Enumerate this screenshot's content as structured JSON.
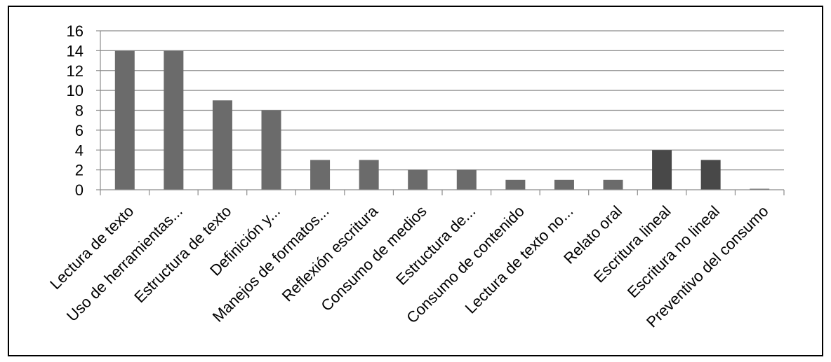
{
  "chart_data": {
    "type": "bar",
    "categories": [
      "Lectura de texto",
      "Uso de herramientas...",
      "Estructura de texto",
      "Definición y...",
      "Manejos de formatos...",
      "Reflexión escritura",
      "Consumo de medios",
      "Estructura de...",
      "Consumo de contenido",
      "Lectura de texto no...",
      "Relato oral",
      "Escritura lineal",
      "Escritura no lineal",
      "Preventivo del consumo"
    ],
    "values": [
      14,
      14,
      9,
      8,
      3,
      3,
      2,
      2,
      1,
      1,
      1,
      4,
      3,
      0.1
    ],
    "bar_colors": [
      "#6b6b6b",
      "#6b6b6b",
      "#6b6b6b",
      "#6b6b6b",
      "#6b6b6b",
      "#6b6b6b",
      "#6b6b6b",
      "#6b6b6b",
      "#6b6b6b",
      "#6b6b6b",
      "#6b6b6b",
      "#484848",
      "#484848",
      "#6b6b6b"
    ],
    "yticks": [
      "0",
      "2",
      "4",
      "6",
      "8",
      "10",
      "12",
      "14",
      "16"
    ],
    "ylim": [
      0,
      16
    ],
    "grid": true,
    "title": "",
    "xlabel": "",
    "ylabel": ""
  }
}
